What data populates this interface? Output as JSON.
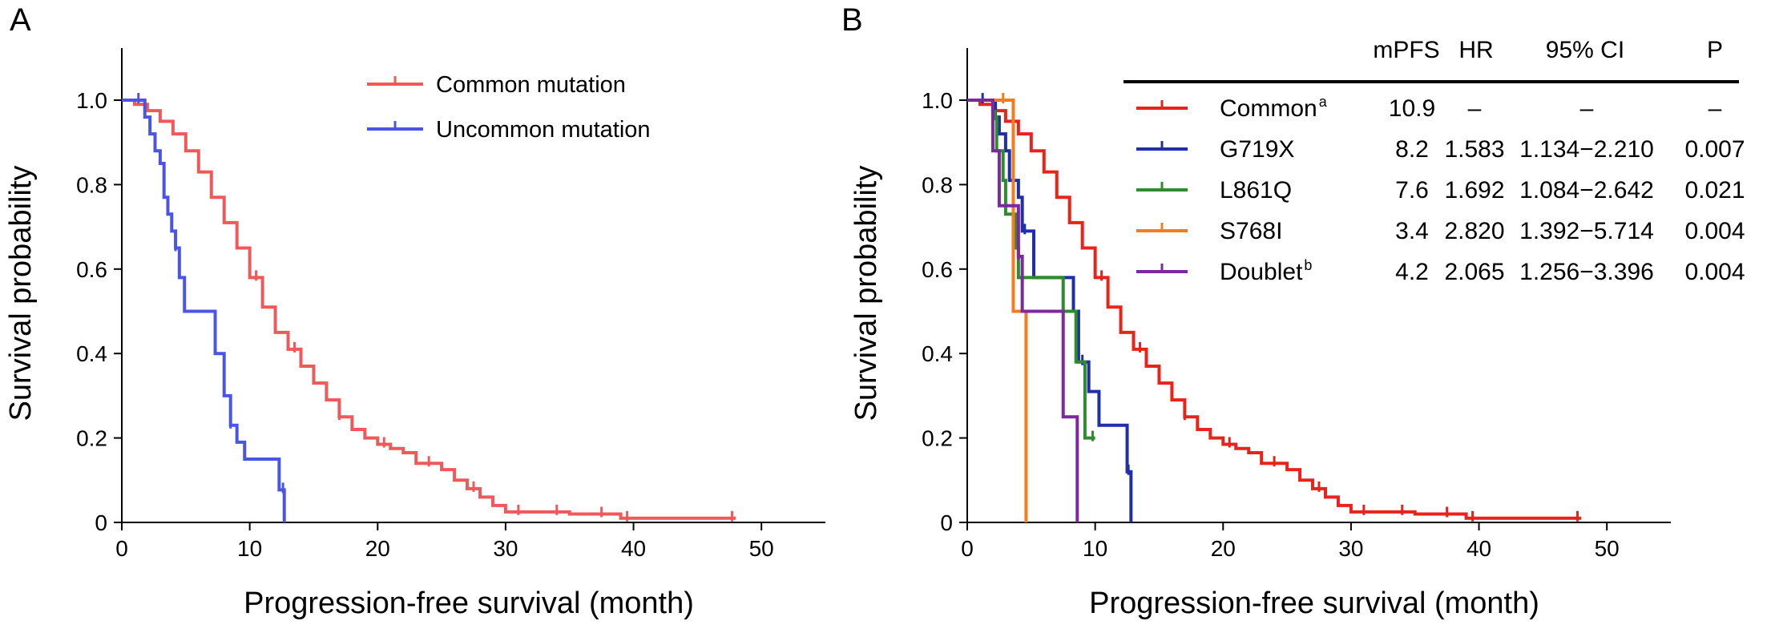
{
  "chart_data": [
    {
      "panel": "A",
      "type": "line",
      "xlabel": "Progression-free survival (month)",
      "ylabel": "Survival probability",
      "xlim": [
        0,
        55
      ],
      "ylim": [
        0,
        1.1
      ],
      "x_ticks": [
        0,
        10,
        20,
        30,
        40,
        50
      ],
      "y_ticks": [
        0,
        0.2,
        0.4,
        0.6,
        0.8,
        1.0
      ],
      "x_tick_labels": [
        "0",
        "10",
        "20",
        "30",
        "40",
        "50"
      ],
      "y_tick_labels": [
        "0",
        "0.2",
        "0.4",
        "0.6",
        "0.8",
        "1.0"
      ],
      "legend_position": "top-right",
      "series": [
        {
          "name": "Common mutation",
          "color": "#f0585a",
          "points": [
            [
              0,
              1.0
            ],
            [
              1,
              0.99
            ],
            [
              2,
              0.975
            ],
            [
              3,
              0.95
            ],
            [
              4,
              0.92
            ],
            [
              5,
              0.88
            ],
            [
              6,
              0.83
            ],
            [
              7,
              0.77
            ],
            [
              8,
              0.71
            ],
            [
              9,
              0.65
            ],
            [
              10,
              0.58
            ],
            [
              11,
              0.51
            ],
            [
              12,
              0.45
            ],
            [
              13,
              0.41
            ],
            [
              14,
              0.37
            ],
            [
              15,
              0.33
            ],
            [
              16,
              0.29
            ],
            [
              17,
              0.25
            ],
            [
              18,
              0.22
            ],
            [
              19,
              0.2
            ],
            [
              20,
              0.185
            ],
            [
              21,
              0.175
            ],
            [
              22,
              0.165
            ],
            [
              23,
              0.14
            ],
            [
              24,
              0.14
            ],
            [
              25,
              0.125
            ],
            [
              26,
              0.1
            ],
            [
              27,
              0.08
            ],
            [
              28,
              0.06
            ],
            [
              29,
              0.04
            ],
            [
              30,
              0.025
            ],
            [
              35,
              0.02
            ],
            [
              39,
              0.01
            ],
            [
              48,
              0.01
            ]
          ],
          "censor_x": [
            10.5,
            13.5,
            17,
            20.5,
            24,
            27.5,
            31,
            34,
            37.5,
            39.5,
            47.7
          ]
        },
        {
          "name": "Uncommon mutation",
          "color": "#4a55e8",
          "points": [
            [
              0,
              1.0
            ],
            [
              1.3,
              1.0
            ],
            [
              1.8,
              0.96
            ],
            [
              2.2,
              0.92
            ],
            [
              2.6,
              0.88
            ],
            [
              3.0,
              0.85
            ],
            [
              3.3,
              0.77
            ],
            [
              3.6,
              0.73
            ],
            [
              3.9,
              0.69
            ],
            [
              4.2,
              0.65
            ],
            [
              4.5,
              0.58
            ],
            [
              4.9,
              0.5
            ],
            [
              7.3,
              0.4
            ],
            [
              8.0,
              0.3
            ],
            [
              8.5,
              0.23
            ],
            [
              9.0,
              0.19
            ],
            [
              9.6,
              0.15
            ],
            [
              12.3,
              0.077
            ],
            [
              12.7,
              0.0
            ]
          ],
          "censor_x": [
            1.3,
            4.2,
            8.5,
            12.6
          ]
        }
      ]
    },
    {
      "panel": "B",
      "type": "line",
      "xlabel": "Progression-free survival (month)",
      "ylabel": "Survival probability",
      "xlim": [
        0,
        55
      ],
      "ylim": [
        0,
        1.1
      ],
      "x_ticks": [
        0,
        10,
        20,
        30,
        40,
        50
      ],
      "y_ticks": [
        0,
        0.2,
        0.4,
        0.6,
        0.8,
        1.0
      ],
      "x_tick_labels": [
        "0",
        "10",
        "20",
        "30",
        "40",
        "50"
      ],
      "y_tick_labels": [
        "0",
        "0.2",
        "0.4",
        "0.6",
        "0.8",
        "1.0"
      ],
      "legend_position": "top-right",
      "table": {
        "headers": [
          "mPFS",
          "HR",
          "95% CI",
          "P"
        ],
        "rows": [
          {
            "label": "Common",
            "sup": "a",
            "color": "#e8231c",
            "cells": [
              "10.9",
              "–",
              "–",
              "–"
            ]
          },
          {
            "label": "G719X",
            "sup": "",
            "color": "#1f2fa8",
            "cells": [
              "8.2",
              "1.583",
              "1.134−2.210",
              "0.007"
            ]
          },
          {
            "label": "L861Q",
            "sup": "",
            "color": "#2e8b2e",
            "cells": [
              "7.6",
              "1.692",
              "1.084−2.642",
              "0.021"
            ]
          },
          {
            "label": "S768I",
            "sup": "",
            "color": "#f07e1e",
            "cells": [
              "3.4",
              "2.820",
              "1.392−5.714",
              "0.004"
            ]
          },
          {
            "label": "Doublet",
            "sup": "b",
            "color": "#7b2a9e",
            "cells": [
              "4.2",
              "2.065",
              "1.256−3.396",
              "0.004"
            ]
          }
        ]
      },
      "series": [
        {
          "name": "Common",
          "color": "#e8231c",
          "points": [
            [
              0,
              1.0
            ],
            [
              1,
              0.99
            ],
            [
              2,
              0.975
            ],
            [
              3,
              0.95
            ],
            [
              4,
              0.92
            ],
            [
              5,
              0.88
            ],
            [
              6,
              0.83
            ],
            [
              7,
              0.77
            ],
            [
              8,
              0.71
            ],
            [
              9,
              0.65
            ],
            [
              10,
              0.58
            ],
            [
              11,
              0.51
            ],
            [
              12,
              0.45
            ],
            [
              13,
              0.41
            ],
            [
              14,
              0.37
            ],
            [
              15,
              0.33
            ],
            [
              16,
              0.29
            ],
            [
              17,
              0.25
            ],
            [
              18,
              0.22
            ],
            [
              19,
              0.2
            ],
            [
              20,
              0.185
            ],
            [
              21,
              0.175
            ],
            [
              22,
              0.165
            ],
            [
              23,
              0.14
            ],
            [
              24,
              0.14
            ],
            [
              25,
              0.125
            ],
            [
              26,
              0.1
            ],
            [
              27,
              0.08
            ],
            [
              28,
              0.06
            ],
            [
              29,
              0.04
            ],
            [
              30,
              0.025
            ],
            [
              35,
              0.02
            ],
            [
              39,
              0.01
            ],
            [
              48,
              0.01
            ]
          ],
          "censor_x": [
            10.5,
            13.5,
            17,
            20.5,
            24,
            27.5,
            31,
            34,
            37.5,
            39.5,
            47.7
          ]
        },
        {
          "name": "G719X",
          "color": "#1f2fa8",
          "points": [
            [
              0,
              1.0
            ],
            [
              1.0,
              1.0
            ],
            [
              2.2,
              0.96
            ],
            [
              2.5,
              0.92
            ],
            [
              3.0,
              0.88
            ],
            [
              3.3,
              0.81
            ],
            [
              4.0,
              0.77
            ],
            [
              4.3,
              0.69
            ],
            [
              5.2,
              0.58
            ],
            [
              8.3,
              0.5
            ],
            [
              8.7,
              0.38
            ],
            [
              9.5,
              0.31
            ],
            [
              10.3,
              0.23
            ],
            [
              12.5,
              0.12
            ],
            [
              12.8,
              0.0
            ]
          ],
          "censor_x": [
            1.2,
            4.5,
            9.0,
            12.6
          ]
        },
        {
          "name": "L861Q",
          "color": "#2e8b2e",
          "points": [
            [
              0,
              1.0
            ],
            [
              2.0,
              0.96
            ],
            [
              2.3,
              0.88
            ],
            [
              2.8,
              0.81
            ],
            [
              3.0,
              0.73
            ],
            [
              3.8,
              0.65
            ],
            [
              4.0,
              0.58
            ],
            [
              7.5,
              0.5
            ],
            [
              8.5,
              0.38
            ],
            [
              9.2,
              0.2
            ],
            [
              10.0,
              0.2
            ]
          ],
          "censor_x": [
            2.2,
            9.8
          ]
        },
        {
          "name": "S768I",
          "color": "#f07e1e",
          "points": [
            [
              0,
              1.0
            ],
            [
              3.5,
              1.0
            ],
            [
              3.6,
              0.5
            ],
            [
              4.5,
              0.5
            ],
            [
              4.6,
              0.0
            ]
          ],
          "censor_x": [
            2.8
          ]
        },
        {
          "name": "Doublet",
          "color": "#7b2a9e",
          "points": [
            [
              0,
              1.0
            ],
            [
              2.0,
              0.88
            ],
            [
              2.5,
              0.75
            ],
            [
              3.5,
              0.75
            ],
            [
              4.0,
              0.63
            ],
            [
              4.3,
              0.5
            ],
            [
              7.2,
              0.5
            ],
            [
              7.5,
              0.25
            ],
            [
              8.4,
              0.25
            ],
            [
              8.6,
              0.0
            ]
          ],
          "censor_x": [
            4.0
          ]
        }
      ]
    }
  ],
  "panels": {
    "a": {
      "label": "A"
    },
    "b": {
      "label": "B"
    }
  }
}
